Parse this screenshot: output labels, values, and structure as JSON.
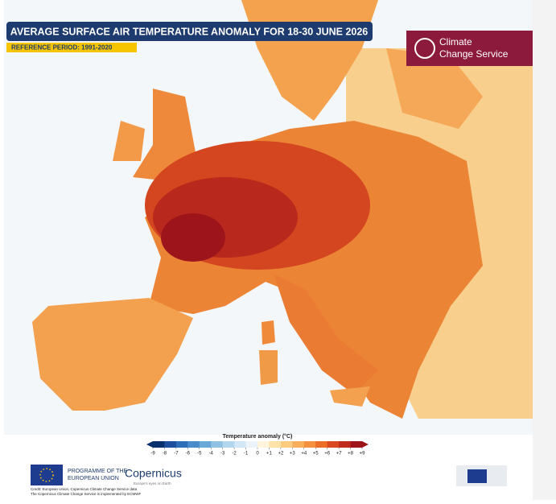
{
  "header": {
    "title": "AVERAGE SURFACE AIR TEMPERATURE ANOMALY FOR 18-30 JUNE 2026",
    "reference_period": "REFERENCE PERIOD: 1991-2020"
  },
  "logo": {
    "line1": "Climate",
    "line2": "Change Service"
  },
  "legend": {
    "title": "Temperature anomaly (°C)",
    "ticks": [
      -9,
      -8,
      -7,
      -6,
      -5,
      -4,
      -3,
      -2,
      -1,
      0,
      {
        "value": 1,
        "label": "+1"
      },
      {
        "value": 2,
        "label": "+2"
      },
      {
        "value": 3,
        "label": "+3"
      },
      {
        "value": 4,
        "label": "+4"
      },
      {
        "value": 5,
        "label": "+5"
      },
      {
        "value": 6,
        "label": "+6"
      },
      {
        "value": 7,
        "label": "+7"
      },
      {
        "value": 8,
        "label": "+8"
      },
      {
        "value": 9,
        "label": "+9"
      }
    ],
    "colors": [
      "#08306b",
      "#1c4f9c",
      "#2f6db8",
      "#4a8cc9",
      "#6aa8d8",
      "#8fc1e4",
      "#b3d6ef",
      "#d3e7f6",
      "#ebf3fb",
      "#fff5dc",
      "#fde3a8",
      "#fbcb80",
      "#f8ae5a",
      "#f4913e",
      "#eb6e2b",
      "#d94a20",
      "#bf2c1c",
      "#9e141b"
    ]
  },
  "footer": {
    "eu_line1": "PROGRAMME OF THE",
    "eu_line2": "EUROPEAN UNION",
    "copernicus": "Copernicus",
    "copernicus_tagline": "Europe's eyes on Earth",
    "credit1": "Credit: European Union, Copernicus Climate Change Service data",
    "credit2": "The Copernicus Climate Change Service is implemented by ECMWF"
  }
}
